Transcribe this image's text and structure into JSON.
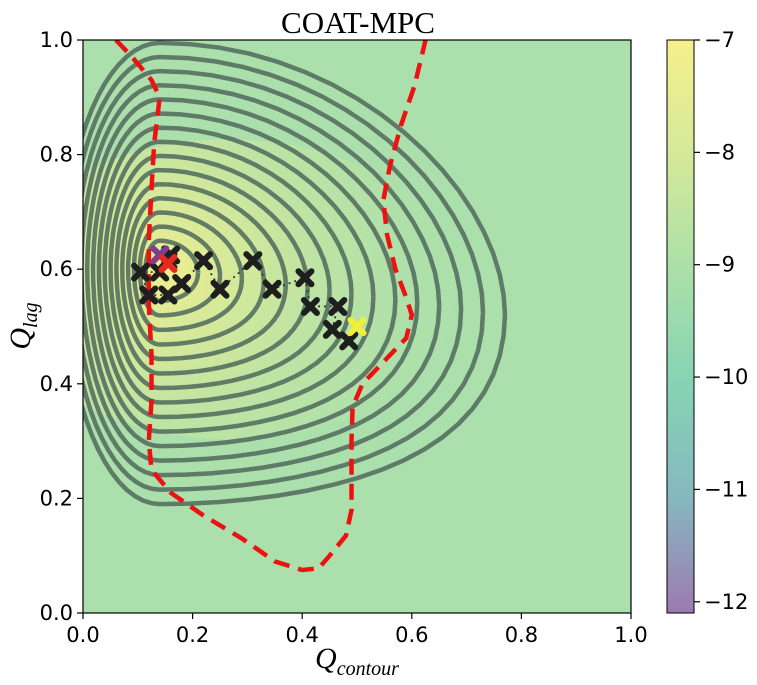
{
  "chart_data": {
    "type": "contour",
    "title": "COAT-MPC",
    "xlabel": "Q",
    "xlabel_sub": "contour",
    "ylabel": "Q",
    "ylabel_sub": "lag",
    "xlim": [
      0.0,
      1.0
    ],
    "ylim": [
      0.0,
      1.0
    ],
    "x_ticks": [
      0.0,
      0.2,
      0.4,
      0.6,
      0.8,
      1.0
    ],
    "x_tick_labels": [
      "0.0",
      "0.2",
      "0.4",
      "0.6",
      "0.8",
      "1.0"
    ],
    "y_ticks": [
      0.0,
      0.2,
      0.4,
      0.6,
      0.8,
      1.0
    ],
    "y_tick_labels": [
      "0.0",
      "0.2",
      "0.4",
      "0.6",
      "0.8",
      "1.0"
    ],
    "colorbar": {
      "range": [
        -12.1,
        -7.0
      ],
      "ticks": [
        -7,
        -8,
        -9,
        -10,
        -11,
        -12
      ],
      "tick_labels": [
        "−7",
        "−8",
        "−9",
        "−10",
        "−11",
        "−12"
      ],
      "colors": [
        "#9d7ab0",
        "#86b8bf",
        "#86d3b4",
        "#abe0a8",
        "#d5e99a",
        "#f5f08c"
      ]
    },
    "peak": [
      0.14,
      0.6
    ],
    "contour_levels": 15,
    "safe_set_boundary": [
      [
        [
          0.06,
          1.0
        ],
        [
          0.09,
          0.97
        ],
        [
          0.125,
          0.93
        ],
        [
          0.14,
          0.9
        ],
        [
          0.135,
          0.86
        ],
        [
          0.13,
          0.82
        ],
        [
          0.125,
          0.74
        ],
        [
          0.12,
          0.65
        ],
        [
          0.12,
          0.54
        ],
        [
          0.125,
          0.45
        ],
        [
          0.125,
          0.37
        ],
        [
          0.12,
          0.3
        ],
        [
          0.125,
          0.25
        ],
        [
          0.16,
          0.21
        ],
        [
          0.22,
          0.17
        ],
        [
          0.29,
          0.13
        ],
        [
          0.35,
          0.09
        ],
        [
          0.4,
          0.075
        ],
        [
          0.43,
          0.078
        ],
        [
          0.45,
          0.1
        ],
        [
          0.48,
          0.135
        ],
        [
          0.49,
          0.18
        ],
        [
          0.49,
          0.25
        ],
        [
          0.49,
          0.3
        ],
        [
          0.492,
          0.36
        ],
        [
          0.51,
          0.4
        ],
        [
          0.55,
          0.44
        ],
        [
          0.59,
          0.48
        ],
        [
          0.6,
          0.52
        ],
        [
          0.59,
          0.55
        ],
        [
          0.57,
          0.6
        ],
        [
          0.555,
          0.66
        ],
        [
          0.548,
          0.72
        ],
        [
          0.56,
          0.78
        ],
        [
          0.58,
          0.85
        ],
        [
          0.605,
          0.92
        ],
        [
          0.62,
          0.98
        ],
        [
          0.625,
          1.0
        ]
      ]
    ],
    "trajectory": [
      [
        0.5,
        0.5
      ],
      [
        0.485,
        0.475
      ],
      [
        0.455,
        0.495
      ],
      [
        0.465,
        0.535
      ],
      [
        0.415,
        0.535
      ],
      [
        0.405,
        0.585
      ],
      [
        0.345,
        0.565
      ],
      [
        0.31,
        0.615
      ],
      [
        0.25,
        0.565
      ],
      [
        0.22,
        0.615
      ],
      [
        0.18,
        0.575
      ],
      [
        0.155,
        0.555
      ],
      [
        0.12,
        0.555
      ],
      [
        0.105,
        0.595
      ],
      [
        0.14,
        0.595
      ],
      [
        0.155,
        0.615
      ],
      [
        0.16,
        0.625
      ],
      [
        0.14,
        0.625
      ]
    ],
    "markers": {
      "start": [
        0.5,
        0.5
      ],
      "best": [
        0.155,
        0.61
      ],
      "start_color": "#f2ee3a",
      "best_color": "#e8281e",
      "marker_color": "#1e1e1e"
    },
    "boundary_color": "#ee1111",
    "contour_color": "#55705f"
  }
}
